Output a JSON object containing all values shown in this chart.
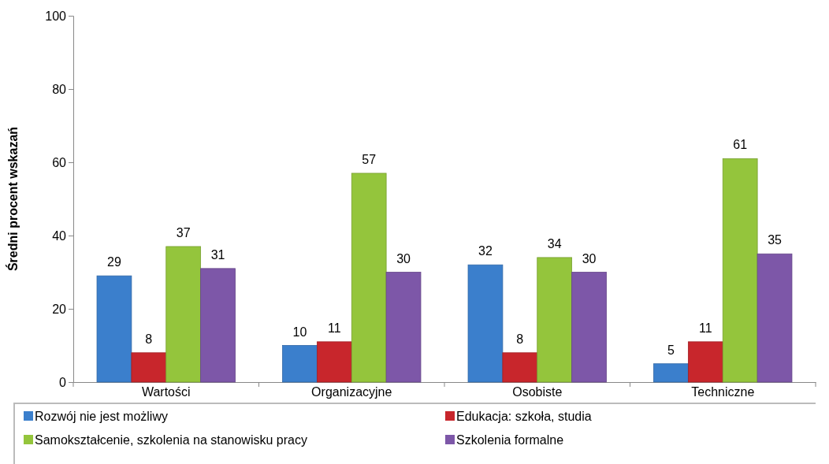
{
  "chart_data": {
    "type": "bar",
    "ylabel": "Średni procent wskazań",
    "categories": [
      "Wartości",
      "Organizacyjne",
      "Osobiste",
      "Techniczne"
    ],
    "series": [
      {
        "name": "Rozwój nie jest możliwy",
        "color": "#3b7fcc",
        "values": [
          29,
          10,
          32,
          5
        ]
      },
      {
        "name": "Edukacja: szkoła, studia",
        "color": "#c8262c",
        "values": [
          8,
          11,
          8,
          11
        ]
      },
      {
        "name": "Samokształcenie, szkolenia na stanowisku pracy",
        "color": "#94c53c",
        "values": [
          37,
          57,
          34,
          61
        ]
      },
      {
        "name": "Szkolenia formalne",
        "color": "#7d57a8",
        "values": [
          31,
          30,
          30,
          35
        ]
      }
    ],
    "ylim": [
      0,
      100
    ],
    "yticks": [
      0,
      20,
      40,
      60,
      80,
      100
    ],
    "grid": false,
    "legend": "bottom",
    "data_labels": true
  }
}
